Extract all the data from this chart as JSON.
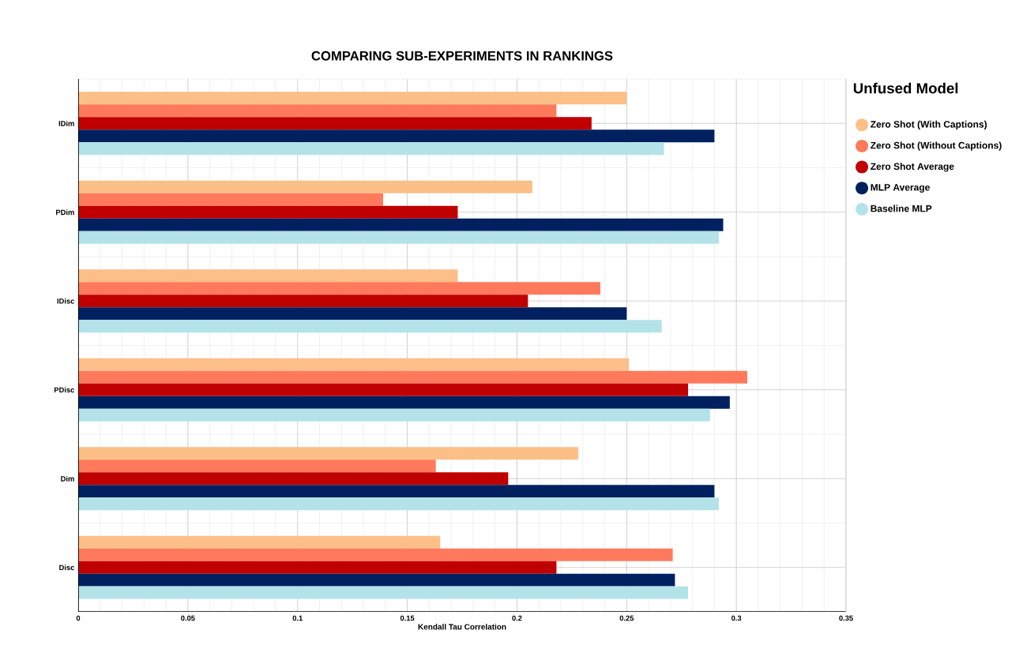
{
  "chart_data": {
    "type": "bar",
    "orientation": "horizontal",
    "title": "COMPARING SUB-EXPERIMENTS IN RANKINGS",
    "xlabel": "Kendall Tau Correlation",
    "legend_title": "Unfused Model",
    "categories": [
      "IDim",
      "PDim",
      "IDisc",
      "PDisc",
      "Dim",
      "Disc"
    ],
    "series": [
      {
        "name": "Zero Shot (With Captions)",
        "color": "#fcbf88",
        "values": [
          0.25,
          0.207,
          0.173,
          0.251,
          0.228,
          0.165
        ]
      },
      {
        "name": "Zero Shot (Without Captions)",
        "color": "#ff7a5c",
        "values": [
          0.218,
          0.139,
          0.238,
          0.305,
          0.163,
          0.271
        ]
      },
      {
        "name": "Zero Shot Average",
        "color": "#c00000",
        "values": [
          0.234,
          0.173,
          0.205,
          0.278,
          0.196,
          0.218
        ]
      },
      {
        "name": "MLP Average",
        "color": "#00205f",
        "values": [
          0.29,
          0.294,
          0.25,
          0.297,
          0.29,
          0.272
        ]
      },
      {
        "name": "Baseline MLP",
        "color": "#b3e3e8",
        "values": [
          0.267,
          0.292,
          0.266,
          0.288,
          0.292,
          0.278
        ]
      }
    ],
    "xlim": [
      0,
      0.35
    ],
    "xticks": [
      0,
      0.05,
      0.1,
      0.15,
      0.2,
      0.25,
      0.3,
      0.35
    ],
    "grid": true,
    "legend": "right"
  }
}
